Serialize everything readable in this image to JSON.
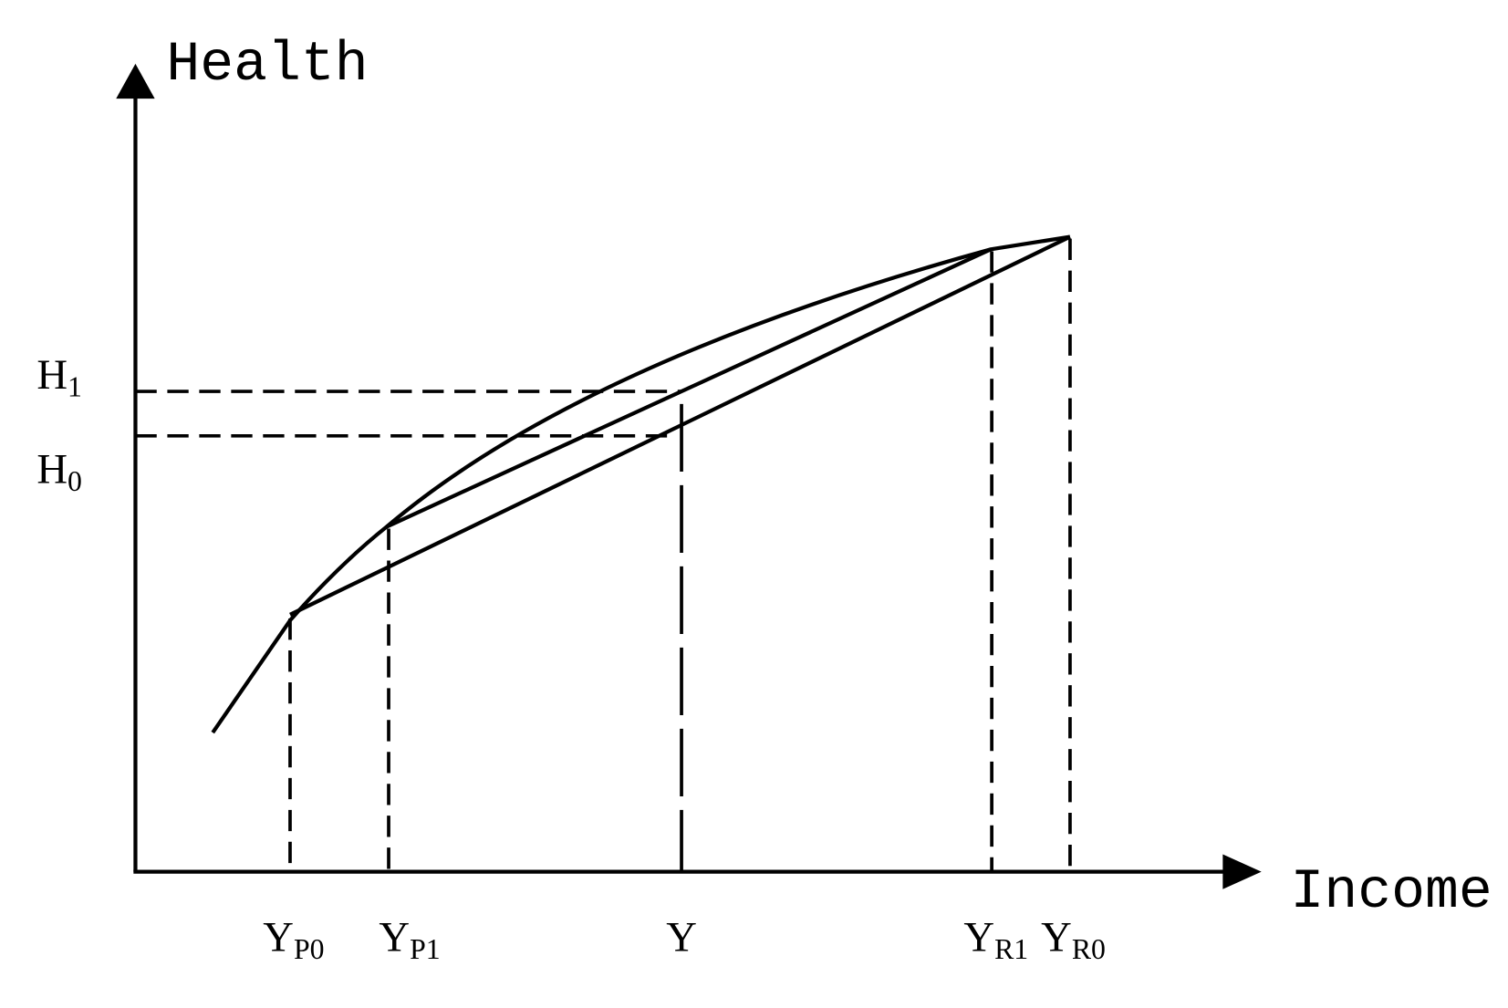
{
  "axes": {
    "y_label": "Health",
    "x_label": "Income"
  },
  "y_labels": [
    {
      "main": "H",
      "sub": "1"
    },
    {
      "main": "H",
      "sub": "0"
    }
  ],
  "x_labels": [
    {
      "main": "Y",
      "sub": "P0"
    },
    {
      "main": "Y",
      "sub": "P1"
    },
    {
      "main": "Y"
    },
    {
      "main": "Y",
      "sub": "R1"
    },
    {
      "main": "Y",
      "sub": "R0"
    }
  ]
}
